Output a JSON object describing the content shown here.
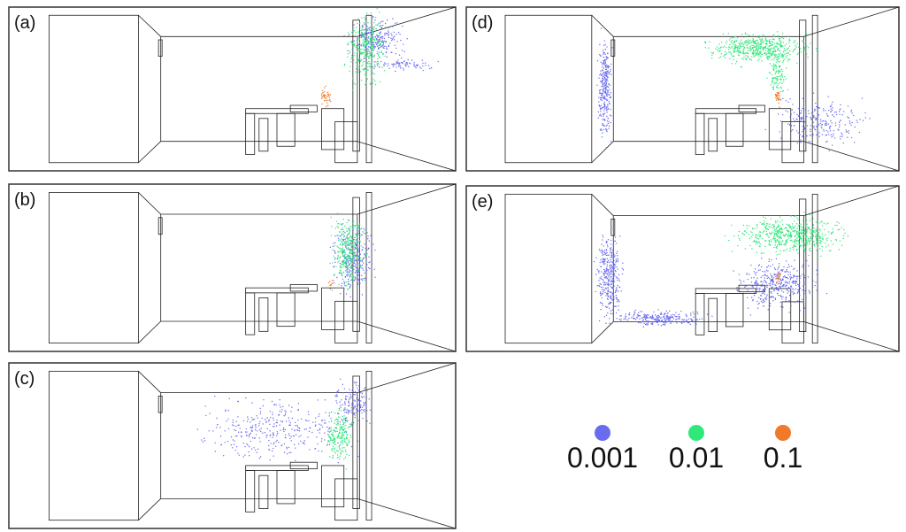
{
  "panels": [
    {
      "label": "(a)"
    },
    {
      "label": "(b)"
    },
    {
      "label": "(c)"
    },
    {
      "label": "(d)"
    },
    {
      "label": "(e)"
    }
  ],
  "legend": [
    {
      "label": "0.001",
      "color": "#6a6cf0"
    },
    {
      "label": "0.01",
      "color": "#2ee87a"
    },
    {
      "label": "0.1",
      "color": "#f07a2a"
    }
  ]
}
